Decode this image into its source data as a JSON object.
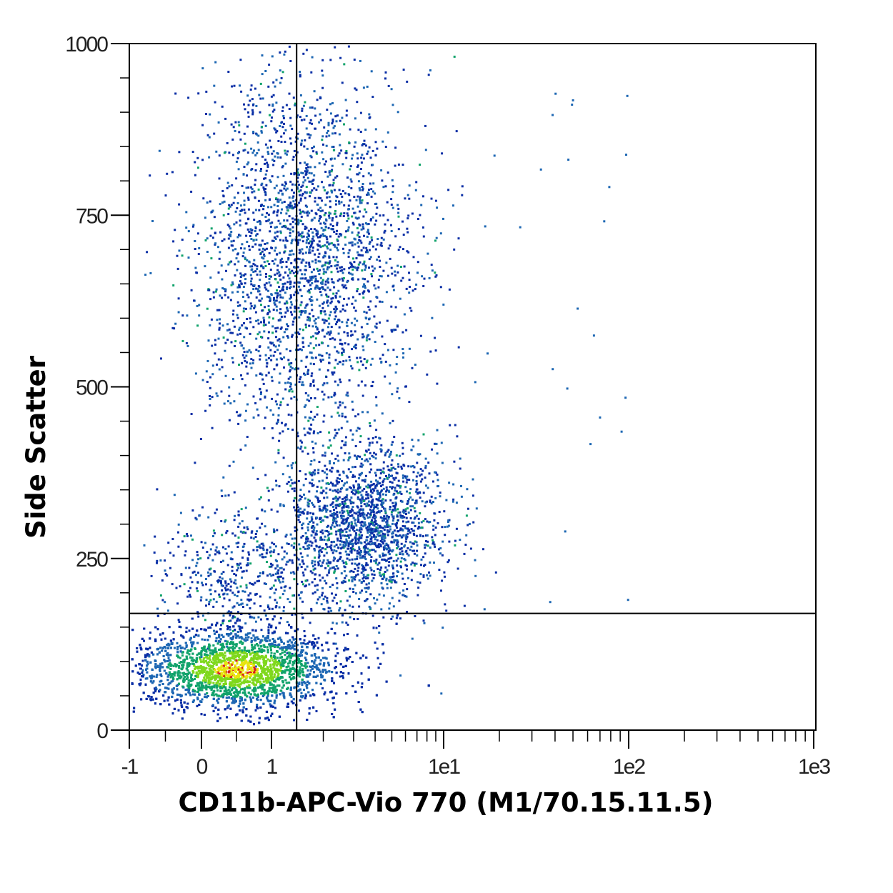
{
  "chart_data": {
    "type": "scatter",
    "subtype": "flow-cytometry-density-dot-plot",
    "xlabel": "CD11b-APC-Vio 770 (M1/70.15.11.5)",
    "ylabel": "Side Scatter",
    "x_scale": "biexponential (linear near 0, logarithmic above ~1)",
    "x_range": [
      -1,
      1000
    ],
    "x_ticks": [
      {
        "value": -1,
        "label": "-1"
      },
      {
        "value": 0,
        "label": "0"
      },
      {
        "value": 1,
        "label": "1"
      },
      {
        "value": 10,
        "label": "1e1"
      },
      {
        "value": 100,
        "label": "1e2"
      },
      {
        "value": 1000,
        "label": "1e3"
      }
    ],
    "y_scale": "linear",
    "y_range": [
      0,
      1000
    ],
    "y_ticks": [
      {
        "value": 0,
        "label": "0"
      },
      {
        "value": 250,
        "label": "250"
      },
      {
        "value": 500,
        "label": "500"
      },
      {
        "value": 750,
        "label": "750"
      },
      {
        "value": 1000,
        "label": "1000"
      }
    ],
    "quadrant_gate": {
      "x": 1.4,
      "y": 170
    },
    "populations": [
      {
        "approx_x_center": 0.5,
        "approx_y_center": 90,
        "relative_density": "very high (yellow/red core)"
      },
      {
        "approx_x_center": 1.5,
        "approx_y_center": 690,
        "relative_density": "medium (blue, sparse green)"
      },
      {
        "approx_x_center": 3.5,
        "approx_y_center": 300,
        "relative_density": "medium (blue, sparse green)"
      }
    ],
    "density_colors": [
      "#0a2fa6",
      "#1d67b3",
      "#11a36b",
      "#7fd81c",
      "#e8e40e",
      "#d81d1d"
    ],
    "grid": false,
    "legend": "none"
  }
}
